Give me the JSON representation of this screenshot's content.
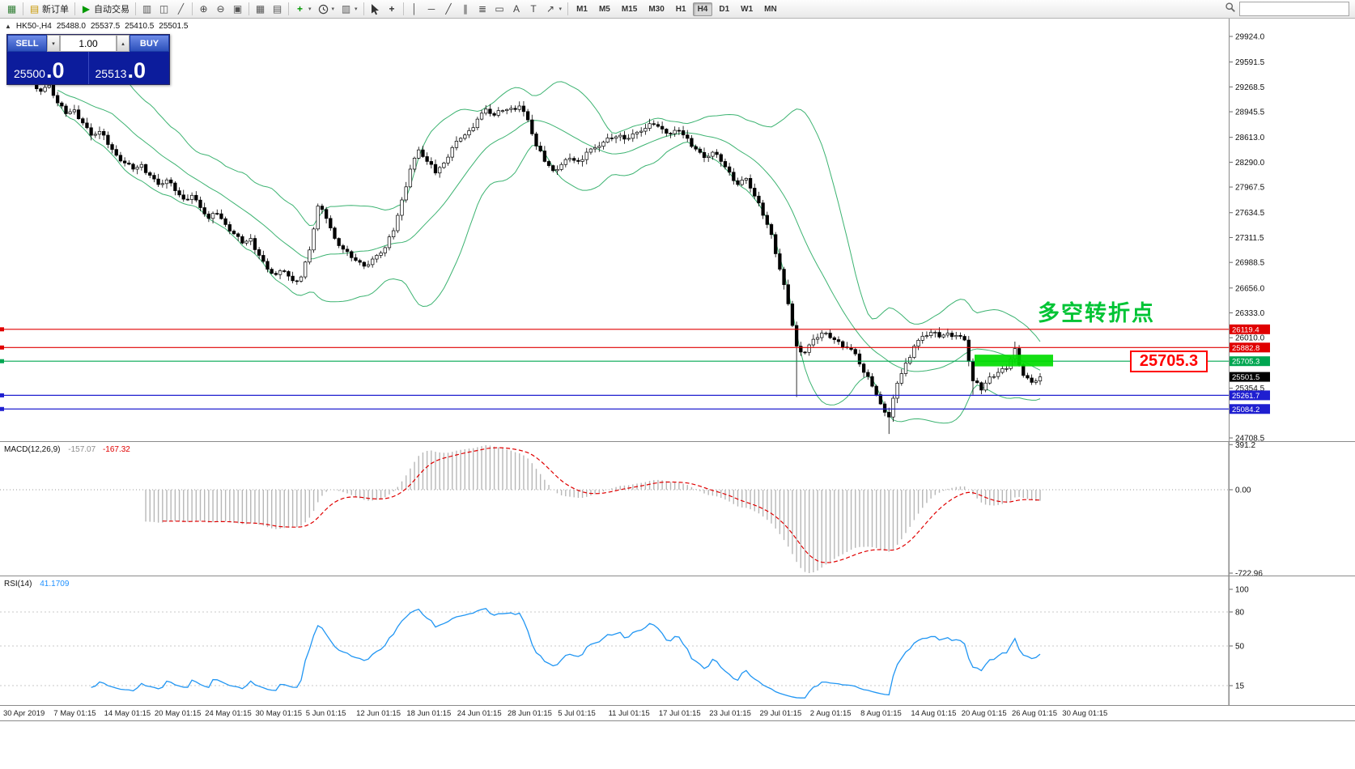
{
  "toolbar": {
    "items": [
      {
        "name": "app-icon",
        "icon": "app"
      },
      {
        "sep": true
      },
      {
        "name": "new-order-button",
        "icon": "new-order",
        "label": "新订单"
      },
      {
        "sep": true
      },
      {
        "name": "autotrade-button",
        "icon": "autotrade",
        "label": "自动交易"
      },
      {
        "sep": true
      },
      {
        "name": "chart-bars-button",
        "icon": "chart-bars"
      },
      {
        "name": "chart-candles-button",
        "icon": "chart-candles"
      },
      {
        "name": "chart-line-button",
        "icon": "chart-line"
      },
      {
        "sep": true
      },
      {
        "name": "zoom-in-button",
        "icon": "zoom-in"
      },
      {
        "name": "zoom-out-button",
        "icon": "zoom-out"
      },
      {
        "name": "new-window-button",
        "icon": "new-window"
      },
      {
        "sep": true
      },
      {
        "name": "tile-windows-button",
        "icon": "tile-windows"
      },
      {
        "name": "arrange-windows-button",
        "icon": "arrange"
      },
      {
        "sep": true
      },
      {
        "name": "add-indicator-button",
        "icon": "add-indicator",
        "caret": true
      },
      {
        "name": "periods-button",
        "icon": "periods-clock",
        "caret": true
      },
      {
        "name": "template-button",
        "icon": "template",
        "caret": true
      },
      {
        "sep": true
      },
      {
        "name": "cursor-button",
        "icon": "cursor"
      },
      {
        "name": "crosshair-button",
        "icon": "crosshair"
      },
      {
        "sep": true
      },
      {
        "name": "vertical-line-button",
        "icon": "vertical-line"
      },
      {
        "name": "horizontal-line-button",
        "icon": "horizontal-line"
      },
      {
        "name": "trendline-button",
        "icon": "trendline"
      },
      {
        "name": "channel-button",
        "icon": "channel"
      },
      {
        "name": "fibonacci-button",
        "icon": "fibonacci"
      },
      {
        "name": "shapes-button",
        "icon": "shapes"
      },
      {
        "name": "text-button",
        "icon": "text"
      },
      {
        "name": "label-button",
        "icon": "label"
      },
      {
        "name": "arrows-button",
        "icon": "arrows",
        "caret": true
      },
      {
        "sep": true
      }
    ],
    "timeframes": [
      "M1",
      "M5",
      "M15",
      "M30",
      "H1",
      "H4",
      "D1",
      "W1",
      "MN"
    ],
    "active_timeframe": "H4"
  },
  "quote_header": {
    "symbol": "HK50-,H4",
    "open": "25488.0",
    "high": "25537.5",
    "low": "25410.5",
    "close": "25501.5"
  },
  "trade_panel": {
    "sell_label": "SELL",
    "buy_label": "BUY",
    "volume": "1.00",
    "sell_price": "25500",
    "sell_frac": ".0",
    "buy_price": "25513",
    "buy_frac": ".0"
  },
  "annotations": {
    "turning_point": "多空转折点",
    "price_callout": "25705.3"
  },
  "hlines": [
    {
      "value": 26119.4,
      "label": "26119.4",
      "color": "#e00000"
    },
    {
      "value": 25882.8,
      "label": "25882.8",
      "color": "#e00000"
    },
    {
      "value": 25705.3,
      "label": "25705.3",
      "color": "#00a651"
    },
    {
      "value": 25261.7,
      "label": "25261.7",
      "color": "#1f1fd0"
    },
    {
      "value": 25084.2,
      "label": "25084.2",
      "color": "#1f1fd0"
    }
  ],
  "current_price_label": {
    "value": 25501.5,
    "label": "25501.5",
    "bg": "#000000",
    "fg": "#ffffff"
  },
  "price_axis": {
    "ticks": [
      "29924.0",
      "29591.5",
      "29268.5",
      "28945.5",
      "28613.0",
      "28290.0",
      "27967.5",
      "27634.5",
      "27311.5",
      "26988.5",
      "26656.0",
      "26333.0",
      "26010.0",
      "25354.5",
      "24708.5"
    ]
  },
  "highlight_rect": {
    "x": 1204,
    "width": 97,
    "price_top": 25790,
    "price_bottom": 25638,
    "color": "#00dc00"
  },
  "macd": {
    "name": "MACD(12,26,9)",
    "value_main": "-157.07",
    "value_signal": "-167.32",
    "axis_labels": [
      "391.2",
      "0.00",
      "-722.96"
    ],
    "axis_values": [
      391.2,
      0,
      -722.96
    ],
    "ylim": [
      -722.96,
      391.2
    ],
    "fast": 12,
    "slow": 26,
    "signal": 9,
    "hist_color": "#b7b7b7",
    "signal_color": "#e00000"
  },
  "rsi": {
    "name": "RSI(14)",
    "value": "41.1709",
    "period": 14,
    "axis_labels": [
      "100",
      "80",
      "50",
      "15"
    ],
    "axis_values": [
      100,
      80,
      50,
      15
    ],
    "levels": [
      80,
      50,
      15
    ],
    "line_color": "#2196f3"
  },
  "time_axis": {
    "labels": [
      "30 Apr 2019",
      "7 May 01:15",
      "14 May 01:15",
      "20 May 01:15",
      "24 May 01:15",
      "30 May 01:15",
      "5 Jun 01:15",
      "12 Jun 01:15",
      "18 Jun 01:15",
      "24 Jun 01:15",
      "28 Jun 01:15",
      "5 Jul 01:15",
      "11 Jul 01:15",
      "17 Jul 01:15",
      "23 Jul 01:15",
      "29 Jul 01:15",
      "2 Aug 01:15",
      "8 Aug 01:15",
      "14 Aug 01:15",
      "20 Aug 01:15",
      "26 Aug 01:15",
      "30 Aug 01:15"
    ]
  },
  "chart_data": {
    "type": "candlestick",
    "symbol": "HK50-",
    "period": "H4",
    "ylim": [
      24708.5,
      29924.0
    ],
    "densify": 2,
    "closes": [
      29350,
      29210,
      29290,
      29060,
      28920,
      28970,
      28800,
      28640,
      28690,
      28520,
      28380,
      28280,
      28200,
      28260,
      28120,
      28000,
      28060,
      27920,
      27810,
      27860,
      27700,
      27560,
      27620,
      27480,
      27360,
      27240,
      27300,
      27080,
      26900,
      26830,
      26870,
      26750,
      26800,
      27150,
      27720,
      27560,
      27300,
      27160,
      27050,
      26990,
      26960,
      27080,
      27180,
      27400,
      27800,
      28200,
      28450,
      28300,
      28150,
      28280,
      28480,
      28600,
      28700,
      28850,
      28980,
      28900,
      28960,
      28990,
      29020,
      28840,
      28500,
      28300,
      28180,
      28260,
      28340,
      28300,
      28420,
      28480,
      28550,
      28600,
      28640,
      28600,
      28680,
      28730,
      28780,
      28720,
      28660,
      28700,
      28600,
      28460,
      28350,
      28420,
      28300,
      28160,
      28000,
      28080,
      27850,
      27600,
      27350,
      26900,
      26450,
      25900,
      25820,
      25990,
      26070,
      26010,
      25960,
      25880,
      25800,
      25560,
      25380,
      25150,
      24980,
      25420,
      25680,
      25900,
      26030,
      26080,
      26020,
      26070,
      26040,
      25980,
      25450,
      25330,
      25500,
      25560,
      25610,
      25870,
      25520,
      25430,
      25501.5
    ],
    "wick_overrides": {
      "0": {
        "high": 29520
      },
      "58": {
        "high": 29080
      },
      "91": {
        "low": 25240
      },
      "102": {
        "low": 24760
      },
      "112": {
        "low": 25270
      },
      "117": {
        "high": 25960
      }
    },
    "bollinger": {
      "period": 20,
      "deviation": 2,
      "color": "#3cb371"
    },
    "last_price": 25501.5
  }
}
